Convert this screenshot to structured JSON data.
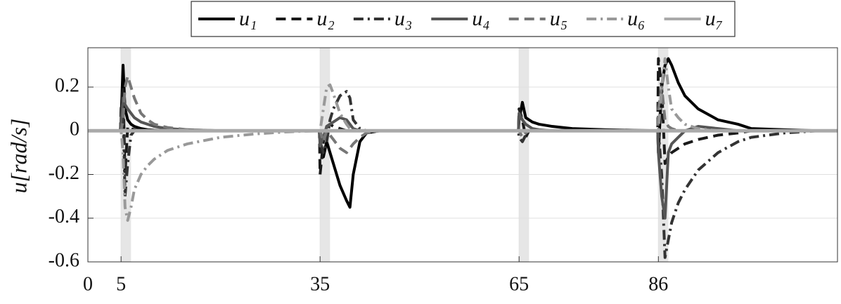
{
  "chart_data": {
    "type": "line",
    "y_label": "u[rad/s]",
    "x": [
      0,
      4.9,
      5,
      5.3,
      5.6,
      6,
      6.5,
      7,
      8,
      9,
      10,
      12,
      15,
      20,
      25,
      30,
      34.9,
      35,
      35.5,
      36,
      36.5,
      37,
      38,
      39,
      39.5,
      40,
      41,
      42,
      44,
      47,
      50,
      55,
      60,
      64.9,
      65,
      65.5,
      66,
      66.5,
      67,
      68,
      70,
      73,
      78,
      85.9,
      86,
      86.5,
      87,
      87.5,
      88,
      89,
      90,
      92,
      95,
      98,
      100,
      105,
      110,
      113
    ],
    "series": [
      {
        "name": "u₁",
        "color": "#000000",
        "dash": "solid",
        "values": [
          0,
          0,
          0.05,
          0.3,
          0.1,
          0.05,
          0.03,
          0.02,
          0.01,
          0.005,
          0.003,
          0.001,
          0,
          0,
          0,
          0,
          0,
          -0.05,
          -0.12,
          -0.05,
          -0.1,
          -0.15,
          -0.25,
          -0.32,
          -0.35,
          -0.2,
          -0.05,
          -0.01,
          0,
          0,
          0,
          0,
          0,
          0,
          0.05,
          0.13,
          0.06,
          0.05,
          0.04,
          0.03,
          0.02,
          0.01,
          0.005,
          0,
          -0.1,
          0.2,
          0.3,
          0.33,
          0.3,
          0.22,
          0.16,
          0.1,
          0.05,
          0.03,
          0.01,
          0.005,
          0,
          0
        ]
      },
      {
        "name": "u₂",
        "color": "#1a1a1a",
        "dash": "dashed",
        "values": [
          0,
          0,
          0.1,
          0.2,
          -0.2,
          0.02,
          0.01,
          0.005,
          0,
          0,
          0,
          0,
          0,
          0,
          0,
          0,
          0,
          -0.2,
          -0.05,
          0.02,
          0.03,
          0.02,
          0.01,
          0,
          0,
          0,
          0,
          0,
          0,
          0,
          0,
          0,
          0,
          0,
          0.1,
          0.05,
          -0.03,
          0,
          0,
          0,
          0,
          0,
          0,
          0,
          0.33,
          0.2,
          -0.15,
          -0.12,
          -0.1,
          -0.08,
          -0.06,
          -0.04,
          -0.02,
          -0.01,
          0,
          0,
          0,
          0
        ]
      },
      {
        "name": "u₃",
        "color": "#333333",
        "dash": "dashdot",
        "values": [
          0,
          0,
          0,
          0.1,
          -0.3,
          -0.15,
          -0.02,
          0,
          0,
          0,
          0,
          0,
          0,
          0,
          0,
          0,
          0,
          -0.05,
          -0.1,
          -0.05,
          0.05,
          0.1,
          0.16,
          0.18,
          0.15,
          0.05,
          0.01,
          0,
          0,
          0,
          0,
          0,
          0,
          0,
          -0.03,
          -0.05,
          -0.02,
          0,
          0,
          0,
          0,
          0,
          0,
          0,
          0,
          -0.2,
          -0.58,
          -0.5,
          -0.42,
          -0.33,
          -0.27,
          -0.18,
          -0.1,
          -0.05,
          -0.03,
          -0.01,
          0,
          0
        ]
      },
      {
        "name": "u₄",
        "color": "#555555",
        "dash": "solid",
        "values": [
          0,
          0,
          0.05,
          0.15,
          0.12,
          0.1,
          0.08,
          0.06,
          0.04,
          0.03,
          0.02,
          0.01,
          0.005,
          0,
          0,
          0,
          0,
          -0.07,
          -0.03,
          0.02,
          0.03,
          0.04,
          0.06,
          0.05,
          0.03,
          0.01,
          0,
          0,
          0,
          0,
          0,
          0,
          0,
          0,
          0.08,
          0.05,
          0.03,
          0.02,
          0.01,
          0.005,
          0,
          0,
          0,
          0,
          -0.1,
          -0.3,
          -0.4,
          -0.1,
          -0.06,
          -0.03,
          0,
          0.02,
          0.01,
          0,
          0,
          0,
          0,
          0
        ]
      },
      {
        "name": "u₅",
        "color": "#777777",
        "dash": "dashed",
        "values": [
          0,
          0,
          0,
          0.05,
          0.2,
          0.25,
          0.2,
          0.15,
          0.08,
          0.05,
          0.03,
          0.015,
          0.005,
          0,
          0,
          0,
          0,
          0,
          -0.05,
          0,
          -0.02,
          -0.04,
          -0.08,
          -0.1,
          -0.08,
          -0.06,
          -0.03,
          -0.01,
          0,
          0,
          0,
          0,
          0,
          0,
          0,
          -0.03,
          -0.01,
          0,
          0,
          0,
          0,
          0,
          0,
          0,
          0.1,
          0.2,
          0.05,
          0.02,
          0.01,
          0,
          0,
          0,
          0,
          0,
          0,
          0,
          0,
          0
        ]
      },
      {
        "name": "u₆",
        "color": "#999999",
        "dash": "dashdot",
        "values": [
          0,
          0,
          0,
          -0.1,
          -0.35,
          -0.41,
          -0.35,
          -0.27,
          -0.2,
          -0.16,
          -0.13,
          -0.09,
          -0.06,
          -0.03,
          -0.015,
          -0.005,
          0,
          0,
          0.1,
          0.2,
          0.21,
          0.17,
          0.08,
          0.03,
          0.01,
          0,
          0,
          0,
          0,
          0,
          0,
          0,
          0,
          0,
          0,
          0,
          0,
          0,
          0,
          0,
          0,
          0,
          0,
          0,
          0,
          0.2,
          0.33,
          0.2,
          0.1,
          0.06,
          0.03,
          0.01,
          0,
          0,
          0,
          0,
          0,
          0
        ]
      },
      {
        "name": "u₇",
        "color": "#aaaaaa",
        "dash": "solid",
        "values": [
          0,
          0,
          0,
          0,
          0,
          0,
          0,
          0,
          0,
          0,
          0,
          0,
          0,
          0,
          0,
          0,
          0,
          0,
          0,
          0,
          0,
          0,
          0,
          0,
          0,
          0,
          0,
          0,
          0,
          0,
          0,
          0,
          0,
          0,
          0,
          0,
          0,
          0,
          0,
          0,
          0,
          0,
          0,
          0,
          0,
          0,
          0,
          0,
          0,
          0,
          0,
          0,
          0,
          0,
          0,
          0,
          0,
          0
        ]
      }
    ],
    "shaded_regions": [
      [
        5,
        6.5
      ],
      [
        35,
        36.5
      ],
      [
        65,
        66.5
      ],
      [
        86,
        87.5
      ]
    ],
    "shade_color": "#e6e6e6",
    "xlim": [
      0,
      113
    ],
    "xticks": [
      0,
      5,
      35,
      65,
      86
    ],
    "ylim": [
      -0.6,
      0.38
    ],
    "yticks": [
      -0.6,
      -0.4,
      -0.2,
      0,
      0.2
    ],
    "grid": true,
    "legend": "top"
  }
}
